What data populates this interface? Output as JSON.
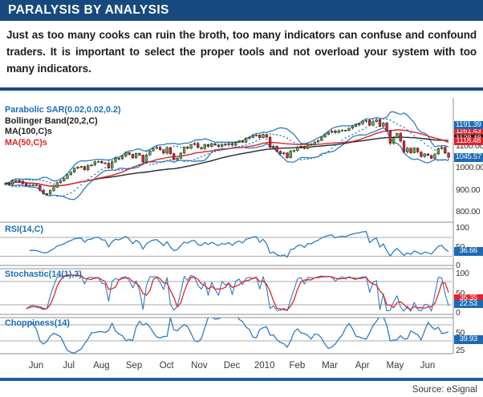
{
  "header": {
    "title": "PARALYSIS BY ANALYSIS"
  },
  "intro": {
    "text": "Just as too many cooks can ruin the broth, too many indicators can confuse and confound traders. It is important to select the proper tools and not overload your system with too many indicators."
  },
  "footer": {
    "source_label": "Source: eSignal"
  },
  "chart_data": {
    "type": "candlestick",
    "title": "PARALYSIS BY ANALYSIS",
    "x": {
      "labels": [
        "Jun",
        "Jul",
        "Aug",
        "Sep",
        "Oct",
        "Nov",
        "Dec",
        "2010",
        "Feb",
        "Mar",
        "Apr",
        "May",
        "Jun"
      ]
    },
    "colors": {
      "blue": "#2e7cc0",
      "red": "#e0242c",
      "green": "#61ad3e",
      "black": "#262626",
      "grid": "#a9a9a9",
      "border": "#8f8f8f",
      "axis_text": "#333333",
      "badge_blue": "#1d6ab2",
      "badge_red": "#e0242c",
      "badge_black": "#1f1f1f"
    },
    "panels": {
      "price": {
        "legend": [
          {
            "label": "Parabolic SAR(0.02,0.02,0.2)",
            "color": "#1b6db8"
          },
          {
            "label": "Bollinger Band(20,2,C)",
            "color": "#231f20"
          },
          {
            "label": "MA(100,C)s",
            "color": "#231f20"
          },
          {
            "label": "MA(50,C)s",
            "color": "#e0242c"
          }
        ],
        "ylim": [
          790,
          1230
        ],
        "right_labels": [
          {
            "text": "1100.00",
            "value": 1100,
            "style": "plain"
          },
          {
            "text": "1000.00",
            "value": 1000,
            "style": "plain"
          },
          {
            "text": "900.00",
            "value": 900,
            "style": "plain"
          },
          {
            "text": "800.00",
            "value": 800,
            "style": "plain"
          },
          {
            "text": "1161.43",
            "value": 1161.43,
            "style": "badge-red"
          },
          {
            "text": "1128.48",
            "value": 1128.48,
            "style": "badge-black"
          },
          {
            "text": "1118.48",
            "value": 1118.48,
            "style": "badge-red"
          },
          {
            "text": "1191.39",
            "value": 1191.39,
            "style": "badge-blue"
          },
          {
            "text": "1045.57",
            "value": 1045.57,
            "style": "badge-blue"
          }
        ],
        "close": [
          930,
          924,
          940,
          942,
          939,
          927,
          918,
          920,
          921,
          919,
          898,
          882,
          880,
          896,
          910,
          932,
          940,
          951,
          968,
          979,
          997,
          1002,
          1005,
          990,
          1010,
          1012,
          1026,
          1028,
          1021,
          1020,
          998,
          1025,
          1042,
          1040,
          1052,
          1068,
          1060,
          1044,
          1065,
          1057,
          1025,
          1057,
          1076,
          1087,
          1092,
          1081,
          1066,
          1091,
          1063,
          1036,
          1042,
          1066,
          1093,
          1087,
          1105,
          1110,
          1091,
          1086,
          1105,
          1096,
          1109,
          1102,
          1096,
          1106,
          1103,
          1110,
          1102,
          1114,
          1120,
          1115,
          1133,
          1137,
          1145,
          1148,
          1136,
          1150,
          1138,
          1092,
          1097,
          1074,
          1063,
          1067,
          1045,
          1075,
          1078,
          1094,
          1097,
          1086,
          1105,
          1104,
          1116,
          1123,
          1139,
          1150,
          1160,
          1166,
          1159,
          1167,
          1170,
          1169,
          1179,
          1187,
          1194,
          1199,
          1211,
          1214,
          1192,
          1208,
          1217,
          1187,
          1202,
          1165,
          1110,
          1136,
          1155,
          1120,
          1071,
          1088,
          1067,
          1089,
          1071,
          1050,
          1062,
          1055,
          1042,
          1062,
          1086,
          1092,
          1066,
          1046
        ]
      },
      "rsi": {
        "label": "RSI(14,C)",
        "last_value": 36.66,
        "gridlines": [
          75,
          25
        ],
        "right_labels": [
          {
            "text": "100",
            "value": 100,
            "style": "plain"
          },
          {
            "text": "50",
            "value": 50,
            "style": "plain"
          },
          {
            "text": "0",
            "value": 0,
            "style": "plain"
          },
          {
            "text": "36.66",
            "value": 36.66,
            "style": "badge-blue"
          }
        ]
      },
      "stochastic": {
        "label": "Stochastic(14(1),3)",
        "last_k": 22.53,
        "last_d": 35.35,
        "gridlines": [
          80,
          20
        ],
        "right_labels": [
          {
            "text": "100",
            "value": 100,
            "style": "plain"
          },
          {
            "text": "50",
            "value": 50,
            "style": "plain"
          },
          {
            "text": "0",
            "value": 0,
            "style": "plain"
          },
          {
            "text": "35.35",
            "value": 35.35,
            "style": "badge-red"
          },
          {
            "text": "22.53",
            "value": 22.53,
            "style": "badge-blue"
          }
        ]
      },
      "choppiness": {
        "label": "Choppiness(14)",
        "last_value": 39.93,
        "gridlines": [
          61.8,
          38.2
        ],
        "right_labels": [
          {
            "text": "50",
            "value": 50,
            "style": "plain"
          },
          {
            "text": "25",
            "value": 25,
            "style": "plain"
          },
          {
            "text": "39.93",
            "value": 39.93,
            "style": "badge-blue"
          }
        ]
      }
    }
  }
}
